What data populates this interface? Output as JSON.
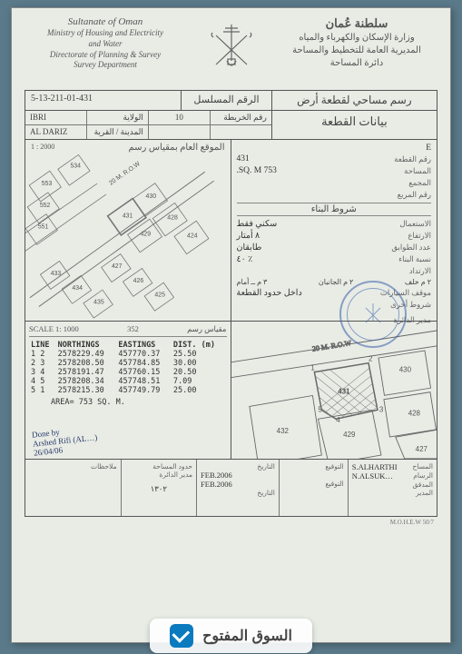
{
  "header": {
    "en": {
      "line1": "Sultanate of Oman",
      "line2": "Ministry of Housing and Electricity",
      "line3": "and Water",
      "line4": "Directorate of Planning & Survey",
      "line5": "Survey Department"
    },
    "ar": {
      "line1": "سلطنة عُمان",
      "line2": "وزارة الإسكان والكهرباء والمياه",
      "line3": "المديرية العامة للتخطيط والمساحة",
      "line4": "دائرة المساحة"
    }
  },
  "title_row": {
    "serial_code": "5-13-211-01-431",
    "serial_label_ar": "الرقم المسلسل",
    "title_ar": "رسم مساحي لقطعة أرض"
  },
  "info_row": {
    "wilaya_en": "IBRI",
    "wilaya_lbl": "الولاية",
    "village_en": "AL DARIZ",
    "village_lbl": "المدينة / القرية",
    "map_no": "10",
    "map_no_lbl": "رقم الخريطة",
    "section_title_ar": "بيانات القطعة"
  },
  "loc_map": {
    "title_ar": "الموقع العام بمقياس رسم",
    "scale": "1 : 2000",
    "plots": [
      "534",
      "553",
      "552",
      "551",
      "431",
      "430",
      "429",
      "428",
      "424",
      "433",
      "434",
      "435",
      "427",
      "426",
      "425"
    ],
    "road_label": "20 M. R.O.W",
    "line_color": "#6a6a6a",
    "bg": "#e8ece5"
  },
  "plot_data": {
    "e_label": "E",
    "plot_no_lbl": "رقم القطعة",
    "plot_no": "431",
    "area_lbl": "المساحة",
    "area_val": "753",
    "area_unit": "SQ. M.",
    "complex_lbl": "المجمع",
    "complex_val": "",
    "block_lbl": "رقم المربع",
    "block_val": "",
    "cond_header": "شروط البناء",
    "use_lbl": "الاستعمال",
    "use_val": "سكني فقط",
    "height_lbl": "الارتفاع",
    "height_val": "٨ أمتار",
    "floors_lbl": "عدد الطوابق",
    "floors_val": "طابقان",
    "build_ratio_lbl": "نسبة البناء",
    "build_ratio_val": "٪ ٤٠",
    "setback_lbl": "الارتداد",
    "setback_front": "٣ م ــ أمام",
    "setback_side": "٢ م الجانبان",
    "setback_back": "٢ م خلف",
    "parking_lbl": "موقف السيارات",
    "parking_val": "داخل حدود القطعة",
    "other_lbl": "شروط أخرى",
    "dept_head_lbl": "مدير الدائرة"
  },
  "coords": {
    "scale_label_en": "SCALE 1: 1000",
    "scale_label_ar": "مقياس رسم",
    "headers": [
      "LINE",
      "NORTHINGS",
      "EASTINGS",
      "DIST. (m)"
    ],
    "rows": [
      [
        "1 2",
        "2578229.49",
        "457770.37",
        "25.50"
      ],
      [
        "2 3",
        "2578208.50",
        "457784.85",
        "30.00"
      ],
      [
        "3 4",
        "2578191.47",
        "457760.15",
        "20.50"
      ],
      [
        "4 5",
        "2578208.34",
        "457748.51",
        "7.09"
      ],
      [
        "5 1",
        "2578215.30",
        "457749.79",
        "25.00"
      ]
    ],
    "area_line": "AREA= 753 SQ. M.",
    "handwritten": {
      "l1": "Done by",
      "l2": "Arshed Rifi (AL…)",
      "l3": "26/04/06"
    },
    "north_marker": "352"
  },
  "detail_map": {
    "plots": [
      "430",
      "431",
      "428",
      "429",
      "427",
      "432"
    ],
    "road_label": "20 M. R.O.W",
    "corners": [
      "1",
      "2",
      "3",
      "4",
      "5"
    ],
    "hatch_color": "#8a8a8a",
    "line_color": "#666"
  },
  "footer": {
    "notes_lbl": "ملاحظات",
    "plot_area_lbl": "حدود المساحة",
    "dept_head_lbl": "مدير الدائرة",
    "date_lbl": "التاريخ",
    "sign_lbl": "التوقيع",
    "surveyor_lbl": "المساح",
    "drawer_lbl": "الرسام",
    "checker_lbl": "المدقق",
    "manager_lbl": "المدير",
    "date1": "FEB.2006",
    "date2": "FEB.2006",
    "name1": "S.ALHARTHI",
    "name2": "N.ALSUK…",
    "num": "١٣٠٢"
  },
  "bottom_code": "M.O.H.E.W 50/7",
  "watermark": "السوق المفتوح",
  "colors": {
    "paper": "#e8ece5",
    "line": "#555",
    "stamp": "#3a5fa8",
    "wm_brand": "#0b7abf"
  }
}
